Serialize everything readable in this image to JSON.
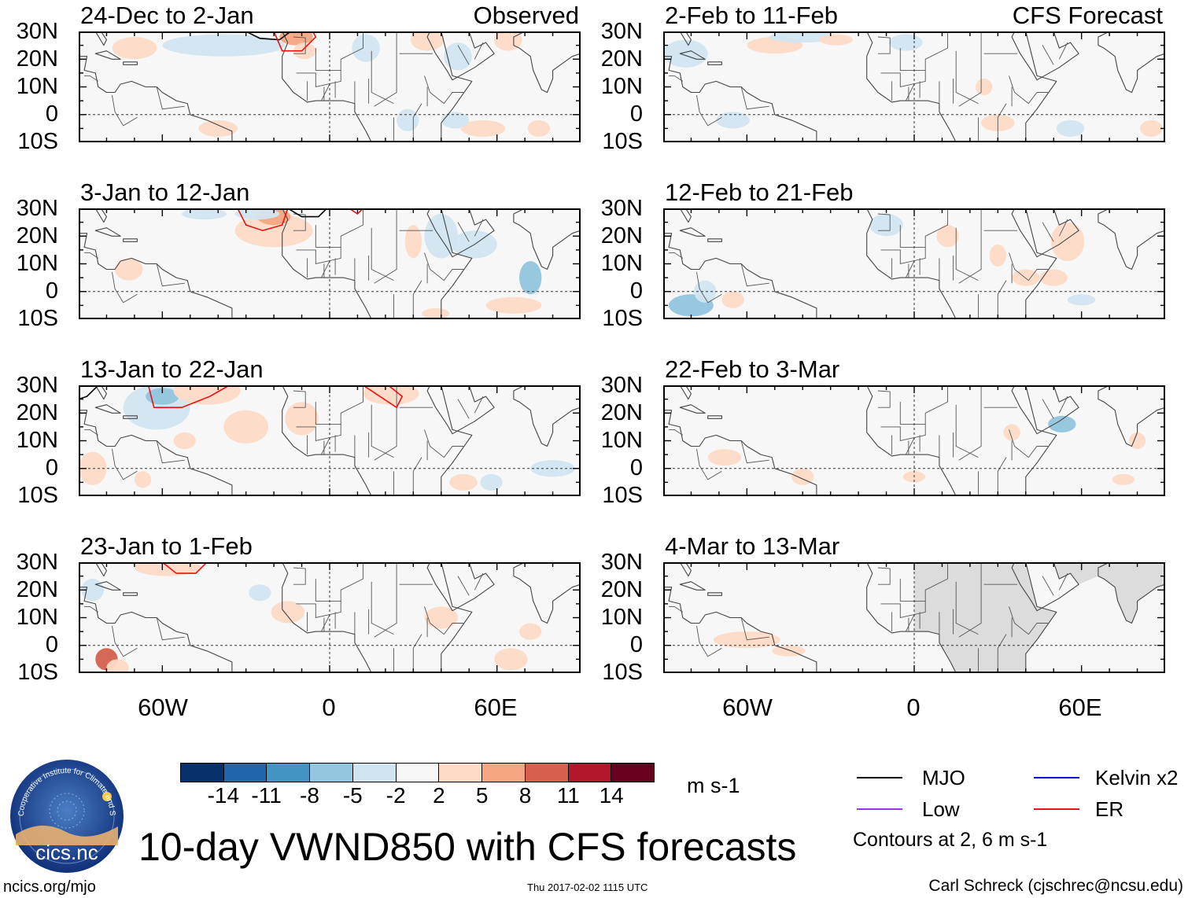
{
  "left_header": "Observed",
  "right_header": "CFS Forecast",
  "panels_left": [
    {
      "title": "24-Dec to 2-Jan"
    },
    {
      "title": "3-Jan to 12-Jan"
    },
    {
      "title": "13-Jan to 22-Jan"
    },
    {
      "title": "23-Jan to 1-Feb"
    }
  ],
  "panels_right": [
    {
      "title": "2-Feb to 11-Feb"
    },
    {
      "title": "12-Feb to 21-Feb"
    },
    {
      "title": "22-Feb to 3-Mar"
    },
    {
      "title": "4-Mar to 13-Mar"
    }
  ],
  "lat_labels": [
    "30N",
    "20N",
    "10N",
    "0",
    "10S"
  ],
  "lon_labels": [
    "60W",
    "0",
    "60E"
  ],
  "colorbar": {
    "labels": [
      "-14",
      "-11",
      "-8",
      "-5",
      "-2",
      "2",
      "5",
      "8",
      "11",
      "14"
    ],
    "colors": [
      "#08306b",
      "#2166ac",
      "#4393c3",
      "#92c5de",
      "#d1e5f0",
      "#f7f7f7",
      "#fddbc7",
      "#f4a582",
      "#d6604d",
      "#b2182b",
      "#67001f"
    ],
    "units": "m s-1"
  },
  "main_title": "10-day VWND850 with CFS forecasts",
  "legend": [
    {
      "label": "MJO",
      "color": "#000000"
    },
    {
      "label": "Kelvin x2",
      "color": "#0000dd"
    },
    {
      "label": "Low",
      "color": "#9933ee"
    },
    {
      "label": "ER",
      "color": "#ee1111"
    }
  ],
  "contour_note": "Contours at 2, 6 m s-1",
  "logo_text": "cics.nc",
  "logo_ring_text": "Cooperative Institute for Climate and Satellites",
  "footer": {
    "left": "ncics.org/mjo",
    "middle": "Thu 2017-02-02 1115 UTC",
    "right": "Carl Schreck (cjschrec@ncsu.edu)"
  }
}
